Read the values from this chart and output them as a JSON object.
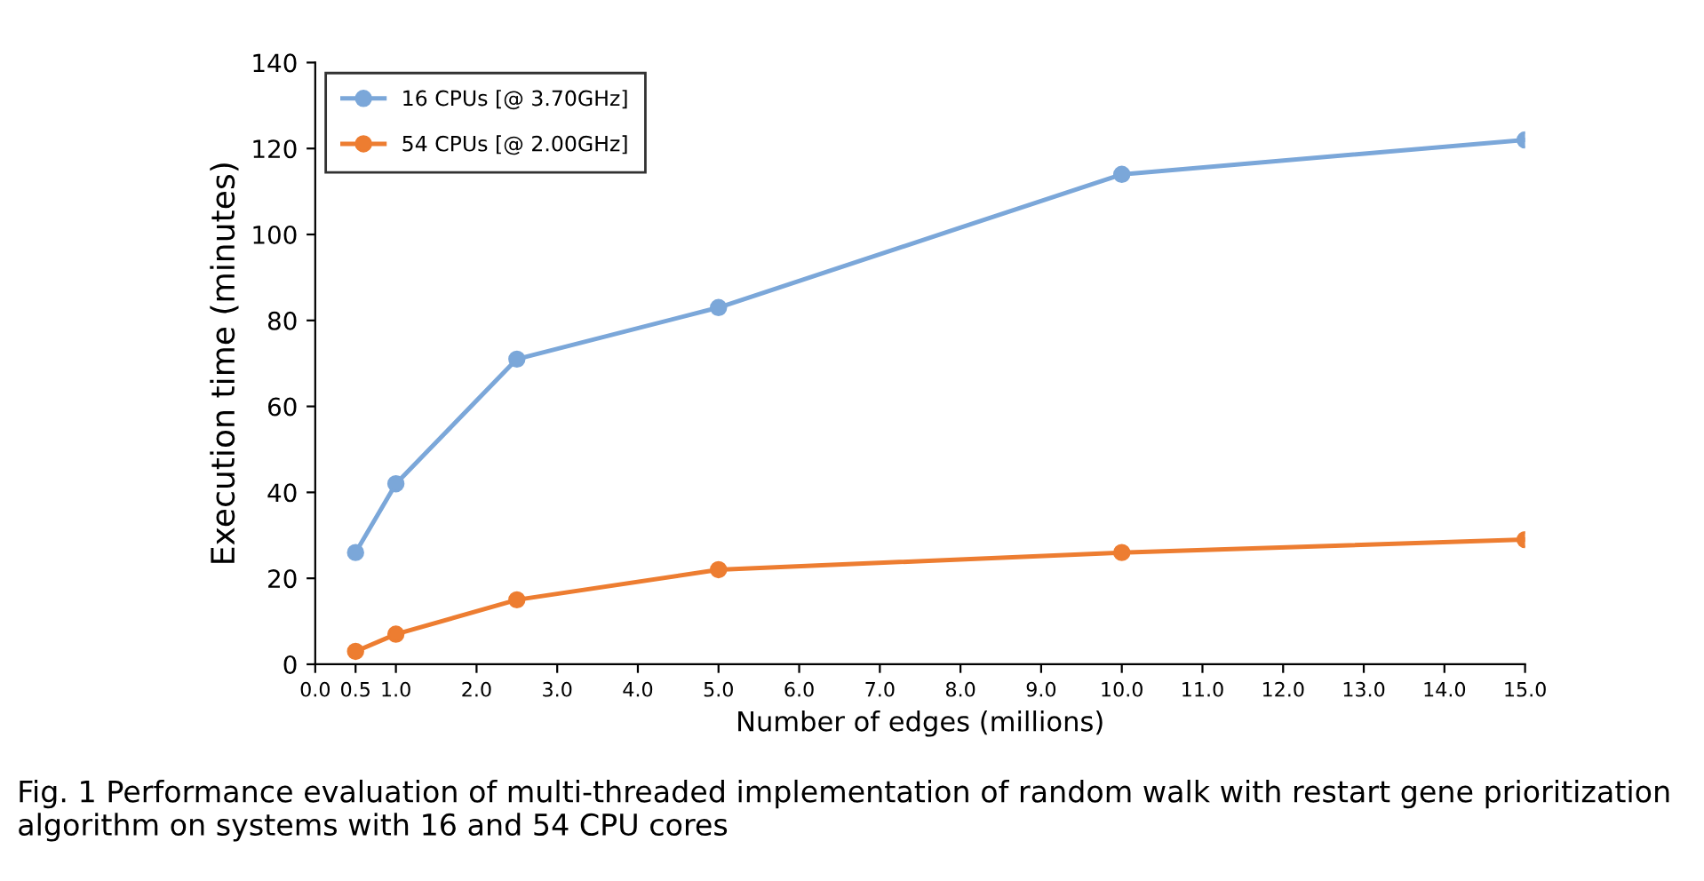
{
  "chart_data": {
    "type": "line",
    "xlabel": "Number of edges (millions)",
    "ylabel": "Execution time (minutes)",
    "x": [
      0.5,
      1.0,
      2.5,
      5.0,
      10.0,
      15.0
    ],
    "series": [
      {
        "name": "16 CPUs [@ 3.70GHz]",
        "color": "#7ba7d9",
        "values": [
          26,
          42,
          71,
          83,
          114,
          122
        ]
      },
      {
        "name": "54 CPUs [@ 2.00GHz]",
        "color": "#ed7d31",
        "values": [
          3,
          7,
          15,
          22,
          26,
          29
        ]
      }
    ],
    "xlim": [
      0,
      15
    ],
    "ylim": [
      0,
      140
    ],
    "xticks": [
      {
        "value": 0,
        "label": "0.0"
      },
      {
        "value": 0.5,
        "label": "0.5"
      },
      {
        "value": 1,
        "label": "1.0"
      },
      {
        "value": 2,
        "label": "2.0"
      },
      {
        "value": 3,
        "label": "3.0"
      },
      {
        "value": 4,
        "label": "4.0"
      },
      {
        "value": 5,
        "label": "5.0"
      },
      {
        "value": 6,
        "label": "6.0"
      },
      {
        "value": 7,
        "label": "7.0"
      },
      {
        "value": 8,
        "label": "8.0"
      },
      {
        "value": 9,
        "label": "9.0"
      },
      {
        "value": 10,
        "label": "10.0"
      },
      {
        "value": 11,
        "label": "11.0"
      },
      {
        "value": 12,
        "label": "12.0"
      },
      {
        "value": 13,
        "label": "13.0"
      },
      {
        "value": 14,
        "label": "14.0"
      },
      {
        "value": 15,
        "label": "15.0"
      }
    ],
    "yticks": [
      0,
      20,
      40,
      60,
      80,
      100,
      120,
      140
    ],
    "annotations": [
      "Fig. 1 Performance evaluation of multi-threaded implementation of random walk with restart gene prioritization algorithm on systems with 16 and 54 CPU cores"
    ],
    "legend": "top left",
    "grid": false,
    "marker": "circle",
    "line_style": "solid"
  }
}
